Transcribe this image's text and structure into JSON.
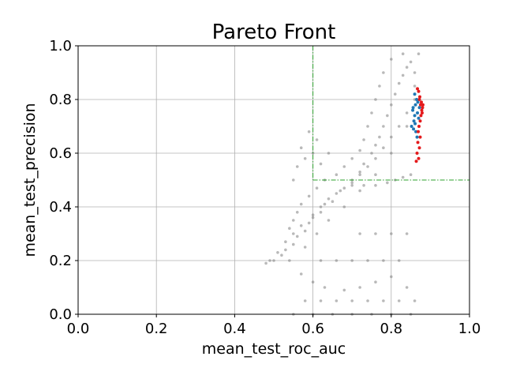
{
  "chart_data": {
    "type": "scatter",
    "title": "Pareto Front",
    "xlabel": "mean_test_roc_auc",
    "ylabel": "mean_test_precision",
    "xlim": [
      0.0,
      1.0
    ],
    "ylim": [
      0.0,
      1.0
    ],
    "xticks": [
      "0.0",
      "0.2",
      "0.4",
      "0.6",
      "0.8",
      "1.0"
    ],
    "yticks": [
      "0.0",
      "0.2",
      "0.4",
      "0.6",
      "0.8",
      "1.0"
    ],
    "grid": true,
    "legend": "none",
    "threshold": {
      "x": 0.6,
      "y": 0.5,
      "color": "#2ca02c",
      "style": "dash-dot"
    },
    "colors": {
      "all_trials": "#808080",
      "pareto_blue": "#1f77b4",
      "pareto_red": "#e41a1c"
    },
    "series": [
      {
        "type": "scatter",
        "color": "#808080",
        "values": [
          [
            0.5,
            0.2
          ],
          [
            0.52,
            0.22
          ],
          [
            0.53,
            0.24
          ],
          [
            0.55,
            0.26
          ],
          [
            0.56,
            0.29
          ],
          [
            0.58,
            0.31
          ],
          [
            0.59,
            0.34
          ],
          [
            0.6,
            0.36
          ],
          [
            0.62,
            0.38
          ],
          [
            0.63,
            0.41
          ],
          [
            0.64,
            0.43
          ],
          [
            0.66,
            0.45
          ],
          [
            0.68,
            0.47
          ],
          [
            0.7,
            0.5
          ],
          [
            0.72,
            0.53
          ],
          [
            0.73,
            0.56
          ],
          [
            0.75,
            0.6
          ],
          [
            0.76,
            0.63
          ],
          [
            0.77,
            0.66
          ],
          [
            0.78,
            0.7
          ],
          [
            0.79,
            0.74
          ],
          [
            0.8,
            0.78
          ],
          [
            0.81,
            0.82
          ],
          [
            0.82,
            0.86
          ],
          [
            0.83,
            0.89
          ],
          [
            0.84,
            0.92
          ],
          [
            0.85,
            0.94
          ],
          [
            0.86,
            0.9
          ],
          [
            0.86,
            0.8
          ],
          [
            0.84,
            0.75
          ],
          [
            0.82,
            0.7
          ],
          [
            0.8,
            0.66
          ],
          [
            0.78,
            0.62
          ],
          [
            0.76,
            0.58
          ],
          [
            0.74,
            0.55
          ],
          [
            0.72,
            0.52
          ],
          [
            0.7,
            0.48
          ],
          [
            0.67,
            0.46
          ],
          [
            0.65,
            0.42
          ],
          [
            0.62,
            0.4
          ],
          [
            0.6,
            0.37
          ],
          [
            0.57,
            0.33
          ],
          [
            0.55,
            0.3
          ],
          [
            0.53,
            0.27
          ],
          [
            0.51,
            0.23
          ],
          [
            0.49,
            0.2
          ],
          [
            0.48,
            0.19
          ],
          [
            0.54,
            0.2
          ],
          [
            0.58,
            0.25
          ],
          [
            0.61,
            0.3
          ],
          [
            0.64,
            0.35
          ],
          [
            0.68,
            0.4
          ],
          [
            0.72,
            0.46
          ],
          [
            0.76,
            0.52
          ],
          [
            0.8,
            0.6
          ],
          [
            0.84,
            0.7
          ],
          [
            0.86,
            0.85
          ],
          [
            0.87,
            0.97
          ],
          [
            0.83,
            0.97
          ],
          [
            0.8,
            0.95
          ],
          [
            0.78,
            0.9
          ],
          [
            0.77,
            0.85
          ],
          [
            0.76,
            0.8
          ],
          [
            0.75,
            0.75
          ],
          [
            0.74,
            0.7
          ],
          [
            0.73,
            0.65
          ],
          [
            0.72,
            0.61
          ],
          [
            0.7,
            0.58
          ],
          [
            0.68,
            0.55
          ],
          [
            0.66,
            0.52
          ],
          [
            0.63,
            0.5
          ],
          [
            0.61,
            0.47
          ],
          [
            0.59,
            0.44
          ],
          [
            0.57,
            0.41
          ],
          [
            0.56,
            0.38
          ],
          [
            0.55,
            0.35
          ],
          [
            0.54,
            0.32
          ],
          [
            0.57,
            0.15
          ],
          [
            0.6,
            0.12
          ],
          [
            0.63,
            0.1
          ],
          [
            0.68,
            0.09
          ],
          [
            0.72,
            0.1
          ],
          [
            0.76,
            0.12
          ],
          [
            0.8,
            0.14
          ],
          [
            0.84,
            0.1
          ],
          [
            0.58,
            0.05
          ],
          [
            0.62,
            0.05
          ],
          [
            0.66,
            0.05
          ],
          [
            0.7,
            0.05
          ],
          [
            0.74,
            0.05
          ],
          [
            0.78,
            0.05
          ],
          [
            0.82,
            0.05
          ],
          [
            0.86,
            0.05
          ],
          [
            0.55,
            0.0
          ],
          [
            0.6,
            0.0
          ],
          [
            0.65,
            0.0
          ],
          [
            0.7,
            0.0
          ],
          [
            0.75,
            0.0
          ],
          [
            0.8,
            0.0
          ],
          [
            0.85,
            0.0
          ],
          [
            0.62,
            0.2
          ],
          [
            0.66,
            0.2
          ],
          [
            0.7,
            0.2
          ],
          [
            0.74,
            0.2
          ],
          [
            0.78,
            0.2
          ],
          [
            0.82,
            0.2
          ],
          [
            0.72,
            0.3
          ],
          [
            0.76,
            0.3
          ],
          [
            0.8,
            0.3
          ],
          [
            0.84,
            0.3
          ],
          [
            0.6,
            0.6
          ],
          [
            0.61,
            0.65
          ],
          [
            0.62,
            0.56
          ],
          [
            0.58,
            0.58
          ],
          [
            0.57,
            0.62
          ],
          [
            0.59,
            0.68
          ],
          [
            0.56,
            0.55
          ],
          [
            0.55,
            0.5
          ],
          [
            0.64,
            0.6
          ],
          [
            0.85,
            0.52
          ],
          [
            0.83,
            0.51
          ],
          [
            0.81,
            0.5
          ],
          [
            0.79,
            0.49
          ],
          [
            0.76,
            0.48
          ],
          [
            0.73,
            0.48
          ],
          [
            0.7,
            0.49
          ]
        ]
      },
      {
        "type": "scatter",
        "color": "#1f77b4",
        "values": [
          [
            0.855,
            0.76
          ],
          [
            0.86,
            0.74
          ],
          [
            0.862,
            0.78
          ],
          [
            0.858,
            0.72
          ],
          [
            0.865,
            0.8
          ],
          [
            0.852,
            0.7
          ],
          [
            0.863,
            0.68
          ],
          [
            0.86,
            0.82
          ],
          [
            0.856,
            0.77
          ],
          [
            0.867,
            0.75
          ],
          [
            0.87,
            0.73
          ],
          [
            0.868,
            0.79
          ],
          [
            0.861,
            0.71
          ],
          [
            0.857,
            0.69
          ],
          [
            0.866,
            0.66
          ],
          [
            0.872,
            0.77
          ]
        ]
      },
      {
        "type": "scatter",
        "color": "#e41a1c",
        "values": [
          [
            0.87,
            0.83
          ],
          [
            0.872,
            0.8
          ],
          [
            0.875,
            0.78
          ],
          [
            0.878,
            0.76
          ],
          [
            0.876,
            0.74
          ],
          [
            0.874,
            0.72
          ],
          [
            0.871,
            0.7
          ],
          [
            0.869,
            0.68
          ],
          [
            0.873,
            0.81
          ],
          [
            0.877,
            0.79
          ],
          [
            0.88,
            0.77
          ],
          [
            0.868,
            0.64
          ],
          [
            0.872,
            0.62
          ],
          [
            0.866,
            0.6
          ],
          [
            0.87,
            0.58
          ],
          [
            0.864,
            0.57
          ],
          [
            0.879,
            0.75
          ],
          [
            0.881,
            0.78
          ],
          [
            0.867,
            0.84
          ],
          [
            0.874,
            0.66
          ]
        ]
      }
    ]
  }
}
